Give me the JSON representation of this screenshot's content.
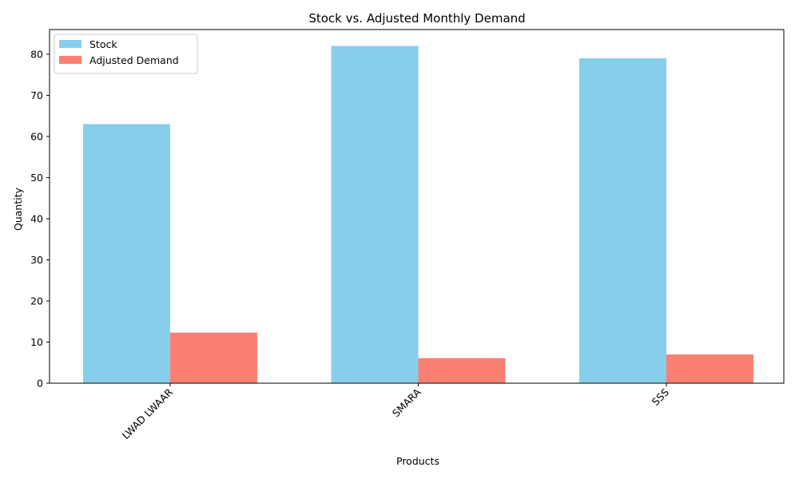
{
  "chart_data": {
    "type": "bar",
    "title": "Stock vs. Adjusted Monthly Demand",
    "xlabel": "Products",
    "ylabel": "Quantity",
    "categories": [
      "LWAD LWAAR",
      "SMARA",
      "SSS"
    ],
    "series": [
      {
        "name": "Stock",
        "values": [
          63,
          82,
          79
        ],
        "color": "#87ceeb"
      },
      {
        "name": "Adjusted Demand",
        "values": [
          12.3,
          6.1,
          7
        ],
        "color": "#fa8072"
      }
    ],
    "ylim": [
      0,
      86
    ],
    "yticks": [
      0,
      10,
      20,
      30,
      40,
      50,
      60,
      70,
      80
    ],
    "grid": false,
    "legend_position": "top-left"
  }
}
